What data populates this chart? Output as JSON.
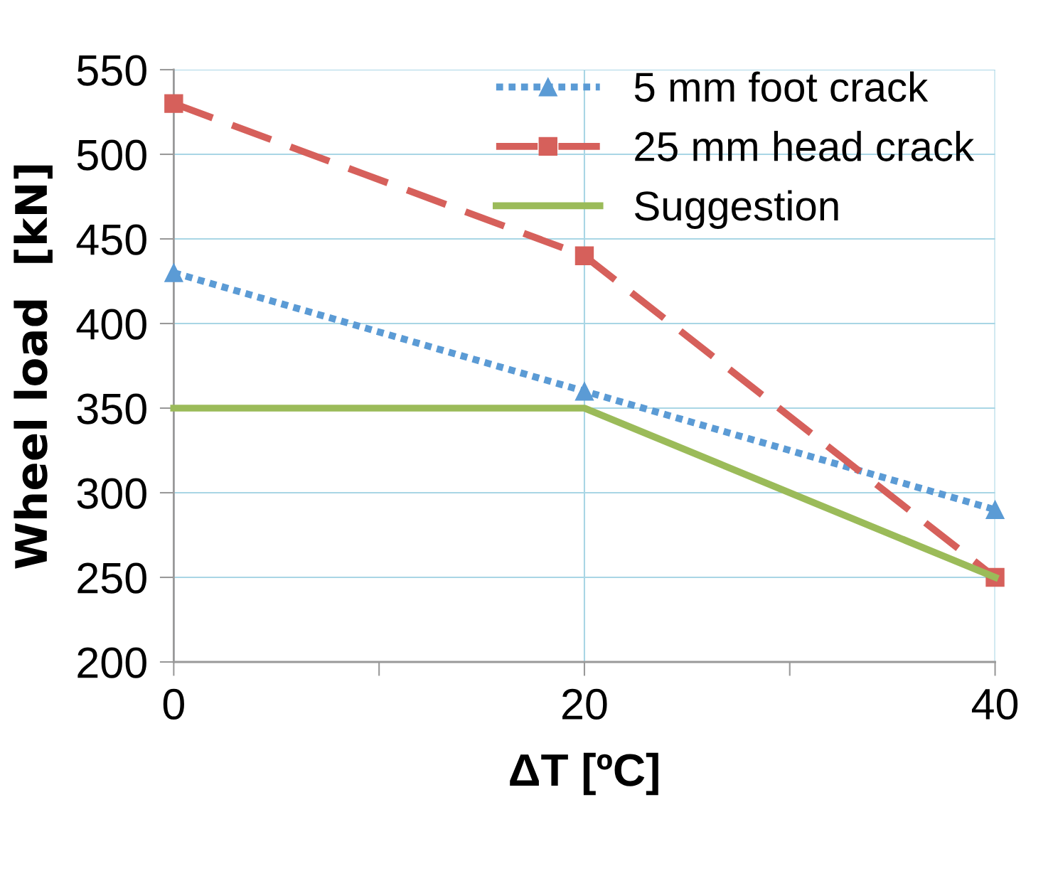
{
  "chart_data": {
    "type": "line",
    "xlabel": "ΔT [ºC]",
    "ylabel": "Wheel load  [kN]",
    "x": [
      0,
      20,
      40
    ],
    "series": [
      {
        "name": "5 mm foot crack",
        "color": "#5b9bd5",
        "values": [
          430,
          360,
          290
        ],
        "marker": "triangle",
        "line_style": "dotted"
      },
      {
        "name": "25 mm head crack",
        "color": "#d6605b",
        "values": [
          530,
          440,
          250
        ],
        "marker": "square",
        "line_style": "dashed"
      },
      {
        "name": "Suggestion",
        "color": "#9bbb59",
        "values": [
          350,
          350,
          250
        ],
        "marker": "none",
        "line_style": "solid"
      }
    ],
    "xlim": [
      0,
      40
    ],
    "xticks": [
      0,
      20,
      40
    ],
    "ylim": [
      200,
      550
    ],
    "yticks": [
      200,
      250,
      300,
      350,
      400,
      450,
      500,
      550
    ],
    "grid": true,
    "legend": "top right"
  }
}
